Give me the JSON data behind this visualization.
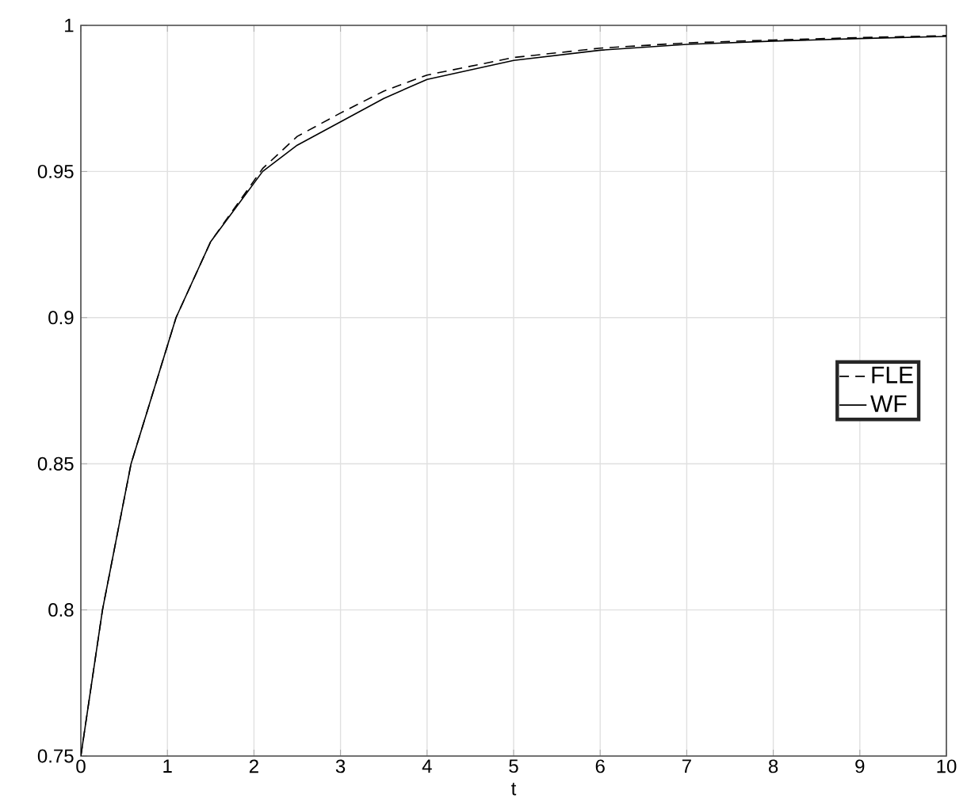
{
  "chart_data": {
    "type": "line",
    "xlabel": "t",
    "xlim": [
      0,
      10
    ],
    "ylim": [
      0.75,
      1
    ],
    "xticks": [
      0,
      1,
      2,
      3,
      4,
      5,
      6,
      7,
      8,
      9,
      10
    ],
    "yticks": [
      0.75,
      0.8,
      0.85,
      0.9,
      0.95,
      1
    ],
    "grid": true,
    "legend": "right",
    "series": [
      {
        "name": "FLE",
        "color": "#000000",
        "line_style": "dashed",
        "x": [
          0,
          0.25,
          0.58,
          1.1,
          1.5,
          2.1,
          2.5,
          3,
          3.5,
          4,
          5,
          6,
          7,
          8,
          9,
          10
        ],
        "values": [
          0.75,
          0.8,
          0.85,
          0.9,
          0.926,
          0.951,
          0.962,
          0.97,
          0.9775,
          0.983,
          0.989,
          0.9922,
          0.994,
          0.995,
          0.9958,
          0.9965
        ]
      },
      {
        "name": "WF",
        "color": "#000000",
        "line_style": "solid",
        "x": [
          0,
          0.25,
          0.58,
          1.1,
          1.5,
          2.1,
          2.5,
          3,
          3.5,
          4,
          5,
          6,
          7,
          8,
          9,
          10
        ],
        "values": [
          0.75,
          0.8,
          0.85,
          0.9,
          0.926,
          0.95,
          0.959,
          0.967,
          0.975,
          0.9815,
          0.988,
          0.9915,
          0.9935,
          0.9946,
          0.9955,
          0.9962
        ]
      }
    ]
  }
}
